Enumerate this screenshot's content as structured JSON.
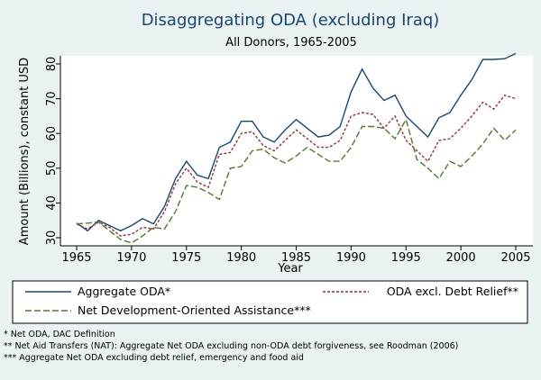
{
  "chart_data": {
    "type": "line",
    "title": "Disaggregating ODA (excluding Iraq)",
    "subtitle": "All Donors, 1965-2005",
    "xlabel": "Year",
    "ylabel": "Amount (Billions), constant USD",
    "xlim": [
      1965,
      2005
    ],
    "ylim": [
      27,
      84
    ],
    "xticks": [
      1965,
      1970,
      1975,
      1980,
      1985,
      1990,
      1995,
      2000,
      2005
    ],
    "yticks": [
      30,
      40,
      50,
      60,
      70,
      80
    ],
    "grid": false,
    "legend_position": "bottom",
    "x": [
      1965,
      1966,
      1967,
      1968,
      1969,
      1970,
      1971,
      1972,
      1973,
      1974,
      1975,
      1976,
      1977,
      1978,
      1979,
      1980,
      1981,
      1982,
      1983,
      1984,
      1985,
      1986,
      1987,
      1988,
      1989,
      1990,
      1991,
      1992,
      1993,
      1994,
      1995,
      1996,
      1997,
      1998,
      1999,
      2000,
      2001,
      2002,
      2003,
      2004,
      2005
    ],
    "series": [
      {
        "name": "Aggregate ODA*",
        "color": "#1a476f",
        "dash": "solid",
        "values": [
          34.2,
          32.0,
          35.0,
          33.5,
          32.0,
          33.5,
          35.5,
          34.0,
          39.0,
          47.0,
          52.0,
          48.0,
          47.0,
          56.0,
          57.5,
          63.5,
          63.5,
          59.0,
          57.5,
          61.0,
          64.0,
          61.5,
          59.0,
          59.5,
          62.0,
          72.0,
          78.5,
          73.0,
          69.5,
          71.0,
          65.0,
          62.0,
          59.0,
          64.5,
          66.0,
          71.0,
          75.5,
          81.3,
          81.3,
          81.5,
          83.0
        ]
      },
      {
        "name": "ODA excl. Debt Relief**",
        "color": "#90353b",
        "dash": "dashed",
        "values": [
          34.0,
          32.5,
          34.5,
          33.0,
          30.5,
          31.0,
          33.0,
          32.5,
          37.5,
          45.5,
          50.0,
          46.0,
          44.5,
          54.0,
          54.5,
          60.0,
          60.5,
          56.5,
          55.0,
          58.0,
          61.0,
          58.5,
          56.0,
          56.0,
          58.0,
          65.0,
          66.0,
          65.5,
          61.5,
          65.0,
          58.0,
          55.0,
          52.0,
          58.0,
          58.5,
          61.5,
          65.0,
          69.0,
          67.0,
          71.0,
          70.0
        ]
      },
      {
        "name": "Net Development-Oriented Assistance***",
        "color": "#55752f",
        "dash": "longdash",
        "values": [
          34.0,
          34.2,
          34.5,
          32.0,
          29.5,
          28.5,
          30.5,
          33.0,
          32.5,
          37.5,
          45.0,
          44.5,
          43.0,
          41.0,
          50.0,
          50.5,
          55.0,
          55.5,
          53.0,
          51.5,
          53.5,
          56.0,
          54.0,
          52.0,
          52.0,
          56.0,
          62.0,
          62.0,
          61.5,
          58.5,
          64.0,
          52.5,
          50.0,
          47.0,
          52.0,
          50.5,
          53.5,
          57.0,
          61.5,
          58.0,
          61.0
        ]
      }
    ]
  },
  "notes": [
    "* Net ODA, DAC Definition",
    "** Net Aid Transfers (NAT): Aggregate Net ODA excluding non-ODA debt forgiveness, see Roodman (2006)",
    "*** Aggregate Net ODA excluding debt relief, emergency and food aid"
  ]
}
